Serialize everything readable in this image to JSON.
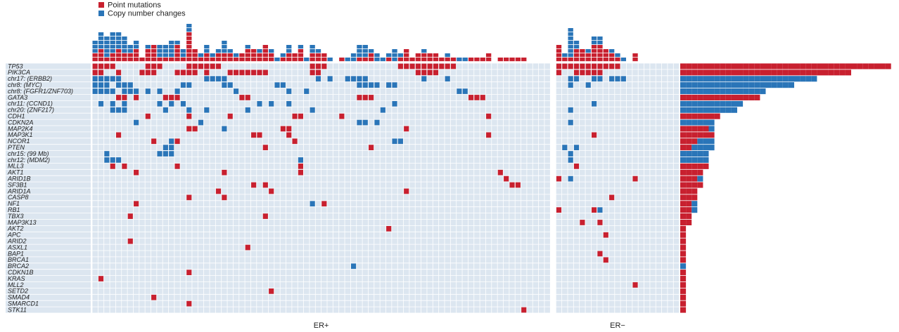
{
  "chart_data": {
    "type": "oncoprint",
    "legend": [
      {
        "name": "Point mutations",
        "color": "#c8202f"
      },
      {
        "name": "Copy number changes",
        "color": "#2a75b8"
      }
    ],
    "groups": [
      {
        "name": "ER+",
        "size": 78
      },
      {
        "name": "ER−",
        "size": 21
      }
    ],
    "rows": [
      {
        "gene": "TP53",
        "mut": [
          0,
          1,
          2,
          3,
          9,
          10,
          11,
          16,
          17,
          18,
          19,
          20,
          21,
          37,
          38,
          39,
          52,
          53,
          54,
          55,
          56,
          57,
          58,
          59,
          60,
          61,
          78,
          79,
          80,
          81,
          82,
          83,
          84,
          85,
          86,
          87,
          88
        ]
      },
      {
        "gene": "PIK3CA",
        "mut": [
          0,
          1,
          4,
          8,
          9,
          10,
          14,
          15,
          16,
          17,
          19,
          23,
          24,
          25,
          26,
          27,
          28,
          29,
          37,
          38,
          55,
          56,
          57,
          58,
          78,
          81,
          82,
          83,
          84,
          85
        ]
      },
      {
        "gene": "chr17: (ERBB2)",
        "cnv": [
          0,
          1,
          2,
          3,
          4,
          19,
          20,
          21,
          22,
          38,
          40,
          43,
          44,
          45,
          46,
          56,
          60,
          80,
          81,
          84,
          85,
          87,
          88,
          89
        ]
      },
      {
        "gene": "chr8: (MYC)",
        "cnv": [
          0,
          1,
          2,
          4,
          5,
          6,
          15,
          16,
          22,
          23,
          31,
          32,
          45,
          46,
          47,
          48,
          50,
          51,
          80,
          83
        ]
      },
      {
        "gene": "chr8: (FGFR1/ZNF703)",
        "cnv": [
          0,
          1,
          2,
          3,
          5,
          6,
          7,
          9,
          11,
          14,
          24,
          33,
          36,
          62,
          63
        ]
      },
      {
        "gene": "GATA3",
        "mut": [
          4,
          5,
          7,
          12,
          13,
          14,
          25,
          26,
          45,
          46,
          47,
          64,
          65,
          66
        ]
      },
      {
        "gene": "chr11: (CCND1)",
        "cnv": [
          1,
          3,
          5,
          11,
          13,
          15,
          28,
          30,
          33,
          51,
          84
        ]
      },
      {
        "gene": "chr20: (ZNF217)",
        "cnv": [
          3,
          4,
          5,
          12,
          16,
          19,
          26,
          37,
          49,
          80
        ]
      },
      {
        "gene": "CDH1",
        "mut": [
          9,
          16,
          23,
          34,
          35,
          42,
          67
        ]
      },
      {
        "gene": "CDKN2A",
        "cnv": [
          7,
          18,
          45,
          46,
          48,
          80
        ]
      },
      {
        "gene": "MAP2K4",
        "mut": [
          16,
          17,
          32,
          33,
          53
        ],
        "cnv": [
          22
        ]
      },
      {
        "gene": "MAP3K1",
        "mut": [
          4,
          27,
          28,
          33,
          67,
          84
        ]
      },
      {
        "gene": "NCOR1",
        "mut": [
          10,
          14,
          34
        ],
        "cnv": [
          13,
          51,
          52
        ]
      },
      {
        "gene": "PTEN",
        "mut": [
          29,
          47
        ],
        "cnv": [
          12,
          13,
          79,
          81
        ]
      },
      {
        "gene": "chr15: (99 Mb)",
        "cnv": [
          2,
          11,
          12,
          13,
          80
        ]
      },
      {
        "gene": "chr12: (MDM2)",
        "cnv": [
          2,
          3,
          4,
          35,
          80
        ]
      },
      {
        "gene": "MLL3",
        "mut": [
          3,
          5,
          14,
          35,
          81
        ]
      },
      {
        "gene": "AKT1",
        "mut": [
          7,
          22,
          35,
          69
        ]
      },
      {
        "gene": "ARID1B",
        "mut": [
          70,
          78,
          91
        ],
        "cnv": [
          80
        ]
      },
      {
        "gene": "SF3B1",
        "mut": [
          27,
          29,
          71,
          72
        ]
      },
      {
        "gene": "ARID1A",
        "mut": [
          21,
          30,
          53
        ]
      },
      {
        "gene": "CASP8",
        "mut": [
          16,
          22,
          87
        ]
      },
      {
        "gene": "NF1",
        "mut": [
          7,
          39
        ],
        "cnv": [
          37
        ]
      },
      {
        "gene": "RB1",
        "mut": [
          78,
          84
        ],
        "cnv": [
          85
        ]
      },
      {
        "gene": "TBX3",
        "mut": [
          6,
          29
        ]
      },
      {
        "gene": "MAP3K13",
        "mut": [
          82,
          85
        ]
      },
      {
        "gene": "AKT2",
        "mut": [
          50
        ]
      },
      {
        "gene": "APC",
        "mut": [
          86
        ]
      },
      {
        "gene": "ARID2",
        "mut": [
          6
        ]
      },
      {
        "gene": "ASXL1",
        "mut": [
          26
        ]
      },
      {
        "gene": "BAP1",
        "mut": [
          85
        ]
      },
      {
        "gene": "BRCA1",
        "mut": [
          86
        ]
      },
      {
        "gene": "BRCA2",
        "cnv": [
          44
        ]
      },
      {
        "gene": "CDKN1B",
        "mut": [
          16
        ]
      },
      {
        "gene": "KRAS",
        "mut": [
          1
        ]
      },
      {
        "gene": "MLL2",
        "mut": [
          91
        ]
      },
      {
        "gene": "SETD2",
        "mut": [
          30
        ]
      },
      {
        "gene": "SMAD4",
        "mut": [
          10
        ]
      },
      {
        "gene": "SMARCD1",
        "mut": [
          16
        ]
      },
      {
        "gene": "STK11",
        "mut": [
          73
        ]
      }
    ]
  }
}
